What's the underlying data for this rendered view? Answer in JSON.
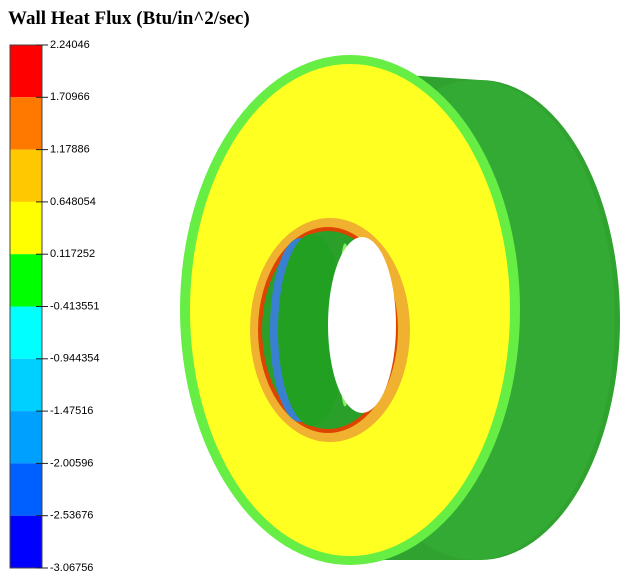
{
  "title": "Wall Heat Flux (Btu/in^2/sec)",
  "legend": {
    "labels": [
      "2.24046",
      "1.70966",
      "1.17886",
      "0.648054",
      "0.117252",
      "-0.413551",
      "-0.944354",
      "-1.47516",
      "-2.00596",
      "-2.53676",
      "-3.06756"
    ],
    "colors": [
      "#ff0000",
      "#ff7800",
      "#ffc800",
      "#ffff00",
      "#00ff00",
      "#00ffff",
      "#00d0ff",
      "#00a0ff",
      "#0060ff",
      "#0000ff"
    ]
  }
}
